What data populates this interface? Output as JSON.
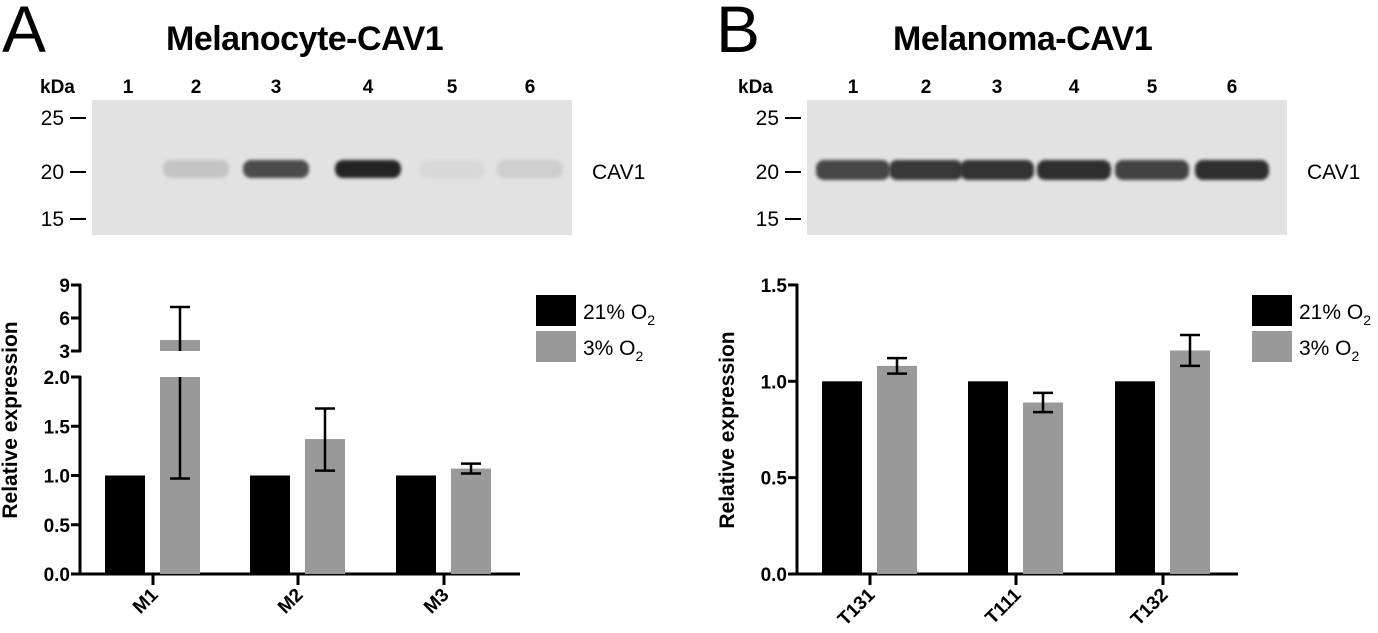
{
  "panels": [
    {
      "letter": "A",
      "title": "Melanocyte-CAV1",
      "blot": {
        "kda_label": "kDa",
        "lanes": [
          "1",
          "2",
          "3",
          "4",
          "5",
          "6"
        ],
        "markers": [
          "25",
          "20",
          "15"
        ],
        "band_label": "CAV1",
        "band_intensity": [
          0.0,
          0.15,
          0.75,
          0.95,
          0.05,
          0.1
        ]
      }
    },
    {
      "letter": "B",
      "title": "Melanoma-CAV1",
      "blot": {
        "kda_label": "kDa",
        "lanes": [
          "1",
          "2",
          "3",
          "4",
          "5",
          "6"
        ],
        "markers": [
          "25",
          "20",
          "15"
        ],
        "band_label": "CAV1",
        "band_intensity": [
          0.78,
          0.85,
          0.88,
          0.9,
          0.8,
          0.9
        ]
      }
    }
  ],
  "chart_data": [
    {
      "type": "bar",
      "title": "",
      "xlabel": "",
      "ylabel": "Relative expression",
      "categories": [
        "M1",
        "M2",
        "M3"
      ],
      "series": [
        {
          "name": "21% O2",
          "color": "#000000",
          "values": [
            1.0,
            1.0,
            1.0
          ],
          "error": [
            0,
            0,
            0
          ]
        },
        {
          "name": "3% O2",
          "color": "#999999",
          "values": [
            4.0,
            1.37,
            1.07
          ],
          "err_low": [
            0.97,
            1.05,
            1.02
          ],
          "err_high": [
            7.0,
            1.68,
            1.12
          ]
        }
      ],
      "y_axis_broken": true,
      "y_segments": [
        {
          "range": [
            0,
            2.0
          ],
          "ticks": [
            "0.0",
            "0.5",
            "1.0",
            "1.5",
            "2.0"
          ],
          "tick_values": [
            0,
            0.5,
            1.0,
            1.5,
            2.0
          ]
        },
        {
          "range": [
            3,
            9
          ],
          "ticks": [
            "3",
            "6",
            "9"
          ],
          "tick_values": [
            3,
            6,
            9
          ]
        }
      ],
      "legend": {
        "placement": "top-right",
        "items": [
          {
            "label": "21% O",
            "sub": "2",
            "color": "#000000"
          },
          {
            "label": "3% O",
            "sub": "2",
            "color": "#999999"
          }
        ]
      },
      "grid": false
    },
    {
      "type": "bar",
      "title": "",
      "xlabel": "",
      "ylabel": "Relative expression",
      "categories": [
        "T131",
        "T111",
        "T132"
      ],
      "series": [
        {
          "name": "21% O2",
          "color": "#000000",
          "values": [
            1.0,
            1.0,
            1.0
          ],
          "error": [
            0,
            0,
            0
          ]
        },
        {
          "name": "3% O2",
          "color": "#999999",
          "values": [
            1.08,
            0.89,
            1.16
          ],
          "err_low": [
            1.04,
            0.84,
            1.08
          ],
          "err_high": [
            1.12,
            0.94,
            1.24
          ]
        }
      ],
      "ylim": [
        0,
        1.5
      ],
      "ticks": [
        "0.0",
        "0.5",
        "1.0",
        "1.5"
      ],
      "tick_values": [
        0,
        0.5,
        1.0,
        1.5
      ],
      "legend": {
        "placement": "top-right",
        "items": [
          {
            "label": "21% O",
            "sub": "2",
            "color": "#000000"
          },
          {
            "label": "3% O",
            "sub": "2",
            "color": "#999999"
          }
        ]
      },
      "grid": false
    }
  ]
}
